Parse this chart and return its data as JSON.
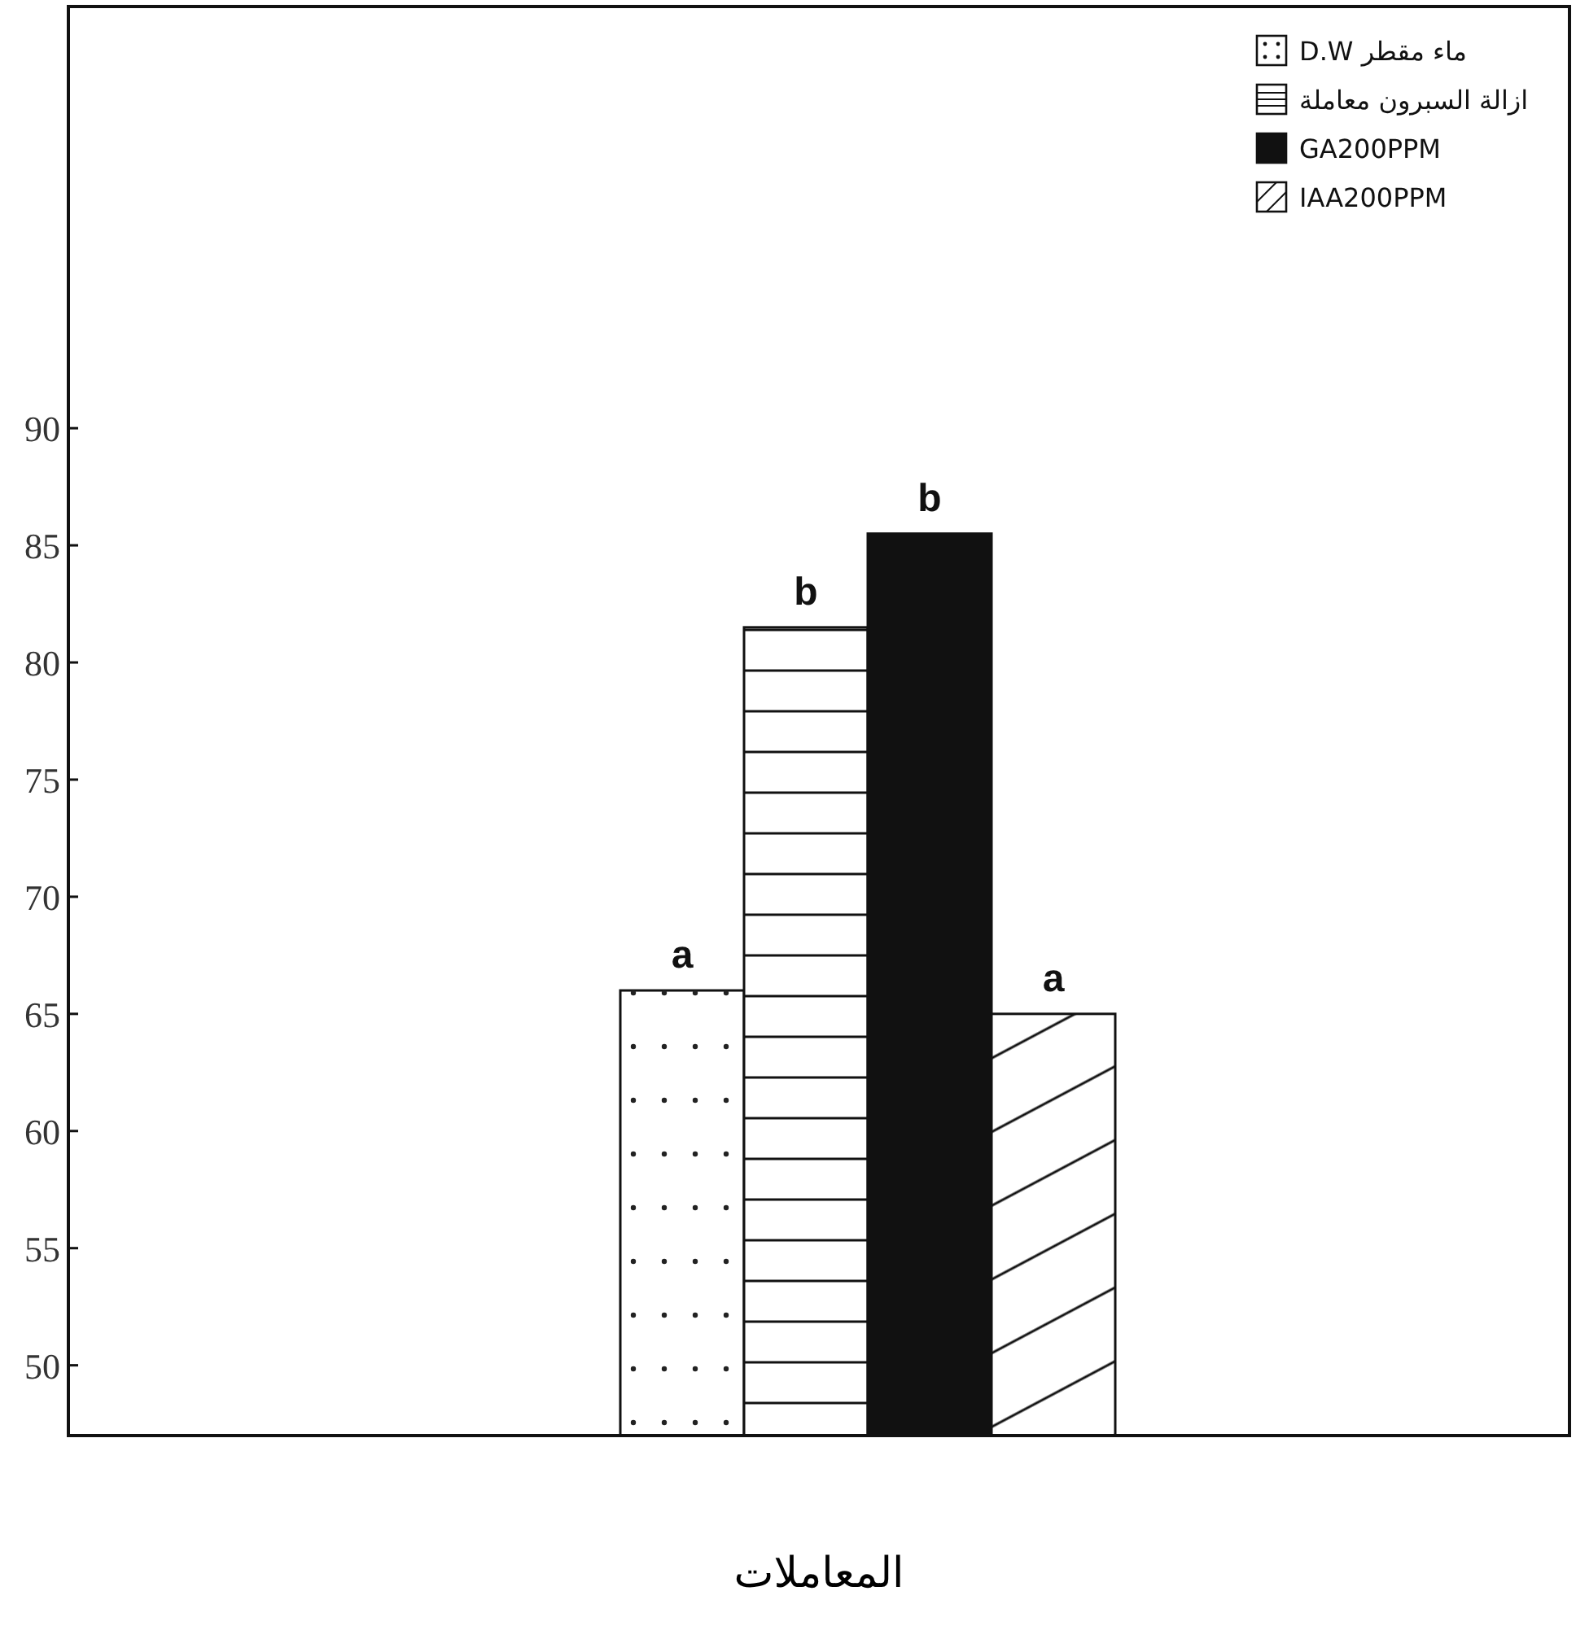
{
  "chart_data": {
    "type": "bar",
    "xlabel": "المعاملات",
    "categories": [
      null
    ],
    "series": [
      {
        "name": "ماء مقطر D.W",
        "color": "#ffffff",
        "values": [
          66
        ]
      },
      {
        "name": "ازالة السبرون معاملة",
        "color": "#ffffff",
        "values": [
          81.5
        ]
      },
      {
        "name": "GA200PPM",
        "color": "#111111",
        "values": [
          85.5
        ]
      },
      {
        "name": "IAA200PPM",
        "color": "#ffffff",
        "values": [
          65
        ]
      }
    ],
    "ylim": [
      47,
      108
    ],
    "yticks": [
      50,
      55,
      60,
      65,
      70,
      75,
      80,
      85,
      90
    ],
    "annotations": [
      {
        "text": "a",
        "y": 66
      },
      {
        "text": "b",
        "y": 81.5
      },
      {
        "text": "b",
        "y": 85.5
      },
      {
        "text": "a",
        "y": 65
      }
    ],
    "legend": "top right",
    "grid": false
  }
}
